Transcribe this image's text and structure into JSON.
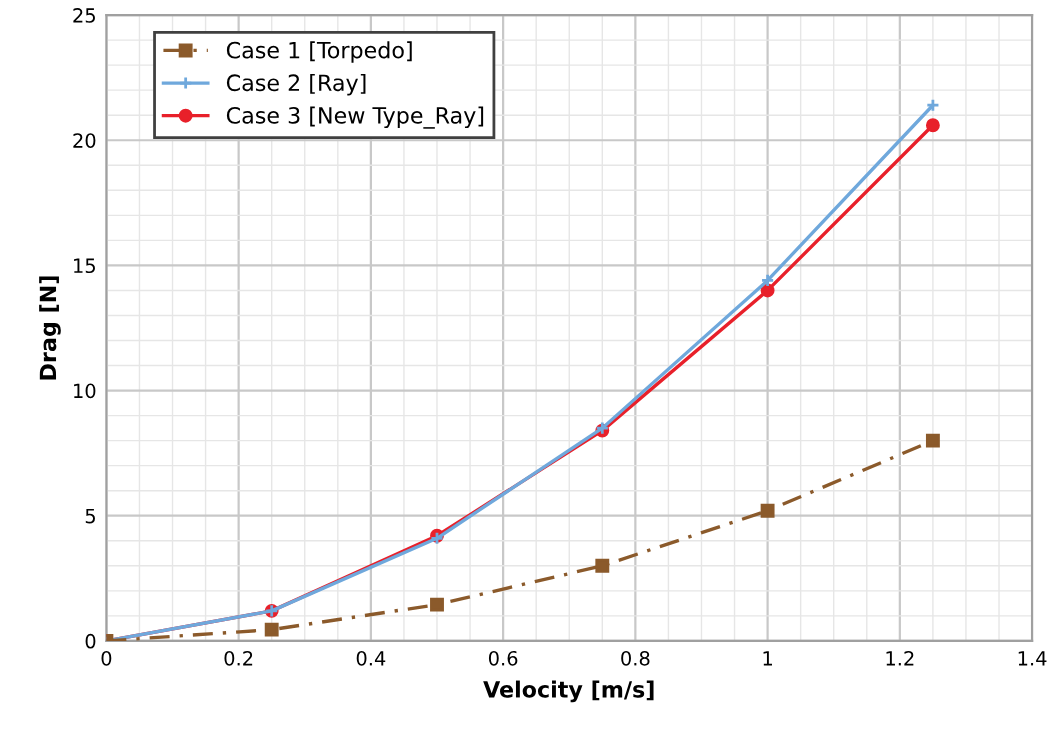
{
  "chart_data": {
    "type": "line",
    "xlabel": "Velocity [m/s]",
    "ylabel": "Drag [N]",
    "x": [
      0,
      0.25,
      0.5,
      0.75,
      1,
      1.25
    ],
    "series": [
      {
        "name": "Case 1 [Torpedo]",
        "color": "#8b5a2b",
        "values": [
          0,
          0.45,
          1.45,
          3.0,
          5.2,
          8.0
        ],
        "marker": "square",
        "line_style": "dashed"
      },
      {
        "name": "Case 2 [Ray]",
        "color": "#6fa8dc",
        "values": [
          0,
          1.2,
          4.1,
          8.5,
          14.4,
          21.4
        ],
        "marker": "cross",
        "line_style": "solid"
      },
      {
        "name": "Case 3 [New Type_Ray]",
        "color": "#e8202a",
        "values": [
          0,
          1.2,
          4.2,
          8.4,
          14.0,
          20.6
        ],
        "marker": "circle",
        "line_style": "solid"
      }
    ],
    "xlim": [
      0,
      1.4
    ],
    "xticks": [
      0,
      0.2,
      0.4,
      0.6,
      0.8,
      1,
      1.2,
      1.4
    ],
    "ylim": [
      0,
      25
    ],
    "yticks": [
      0,
      5,
      10,
      15,
      20,
      25
    ],
    "grid": true,
    "legend": "top left"
  }
}
